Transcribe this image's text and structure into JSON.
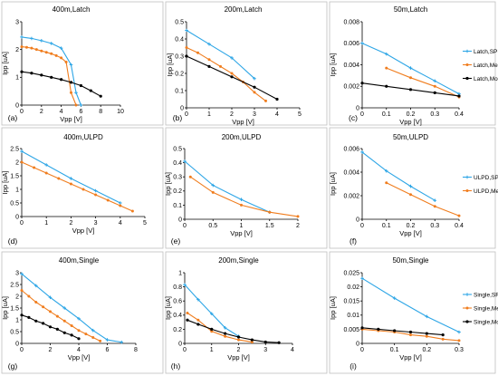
{
  "colors": {
    "spice": "#2ea6e6",
    "meas": "#f07d1e",
    "model": "#000000"
  },
  "panels": [
    {
      "panel_label": "(a)",
      "title": "400m,Latch",
      "xlabel": "Vpp [V]",
      "ylabel": "Ipp [uA]",
      "xlim": [
        0,
        10
      ],
      "ylim": [
        0,
        3
      ],
      "xticks": [
        "0",
        "2",
        "4",
        "6",
        "8",
        "10"
      ],
      "yticks": [
        "0",
        "1",
        "2",
        "3"
      ],
      "series": [
        {
          "kind": "spice",
          "name": "Latch,SPICE",
          "x": [
            0,
            1,
            2,
            3,
            4,
            5,
            5.5,
            6
          ],
          "y": [
            2.45,
            2.4,
            2.32,
            2.22,
            2.05,
            1.45,
            0.45,
            0
          ]
        },
        {
          "kind": "meas",
          "name": "Latch,Meas",
          "x": [
            0,
            0.5,
            1,
            1.5,
            2,
            2.5,
            3,
            3.5,
            4,
            4.5,
            5,
            5.5
          ],
          "y": [
            2.1,
            2.08,
            2.05,
            2.0,
            1.95,
            1.9,
            1.85,
            1.78,
            1.7,
            1.55,
            0.45,
            0
          ]
        },
        {
          "kind": "model",
          "name": "Latch,Model",
          "x": [
            0,
            1,
            2,
            3,
            4,
            5,
            6,
            7,
            8
          ],
          "y": [
            1.2,
            1.15,
            1.08,
            1.0,
            0.92,
            0.82,
            0.7,
            0.52,
            0.32
          ]
        }
      ]
    },
    {
      "panel_label": "(b)",
      "title": "200m,Latch",
      "xlabel": "Vpp [V]",
      "ylabel": "Ipp [uA]",
      "xlim": [
        0,
        5
      ],
      "ylim": [
        0,
        0.5
      ],
      "xticks": [
        "0",
        "1",
        "2",
        "3",
        "4",
        "5"
      ],
      "yticks": [
        "0",
        "0.1",
        "0.2",
        "0.3",
        "0.4",
        "0.5"
      ],
      "series": [
        {
          "kind": "spice",
          "name": "Latch,SPICE",
          "x": [
            0,
            1,
            2,
            3
          ],
          "y": [
            0.45,
            0.37,
            0.29,
            0.17
          ]
        },
        {
          "kind": "meas",
          "name": "Latch,Meas",
          "x": [
            0,
            0.5,
            1,
            1.5,
            2,
            2.5,
            3,
            3.5
          ],
          "y": [
            0.35,
            0.32,
            0.28,
            0.24,
            0.2,
            0.15,
            0.09,
            0.04
          ]
        },
        {
          "kind": "model",
          "name": "Latch,Model",
          "x": [
            0,
            1,
            2,
            3,
            4
          ],
          "y": [
            0.3,
            0.24,
            0.18,
            0.12,
            0.05
          ]
        }
      ]
    },
    {
      "panel_label": "(c)",
      "title": "50m,Latch",
      "xlabel": "Vpp [V]",
      "ylabel": "Ipp [uA]",
      "xlim": [
        0,
        0.4
      ],
      "ylim": [
        0,
        0.008
      ],
      "xticks": [
        "0",
        "0.1",
        "0.2",
        "0.3",
        "0.4"
      ],
      "yticks": [
        "0",
        "0.002",
        "0.004",
        "0.006",
        "0.008"
      ],
      "legend": [
        "Latch,SPICE",
        "Latch,Meas",
        "Latch,Model"
      ],
      "series": [
        {
          "kind": "spice",
          "name": "Latch,SPICE",
          "x": [
            0,
            0.1,
            0.2,
            0.3,
            0.4
          ],
          "y": [
            0.006,
            0.005,
            0.0037,
            0.0025,
            0.0013
          ]
        },
        {
          "kind": "meas",
          "name": "Latch,Meas",
          "x": [
            0.1,
            0.2,
            0.3,
            0.4
          ],
          "y": [
            0.0037,
            0.0028,
            0.002,
            0.001
          ]
        },
        {
          "kind": "model",
          "name": "Latch,Model",
          "x": [
            0,
            0.1,
            0.2,
            0.3,
            0.4
          ],
          "y": [
            0.0023,
            0.002,
            0.0017,
            0.0014,
            0.0011
          ]
        }
      ]
    },
    {
      "panel_label": "(d)",
      "title": "400m,ULPD",
      "xlabel": "Vpp [V]",
      "ylabel": "Ipp [uA]",
      "xlim": [
        0,
        5
      ],
      "ylim": [
        0,
        2.5
      ],
      "xticks": [
        "0",
        "1",
        "2",
        "3",
        "4",
        "5"
      ],
      "yticks": [
        "0",
        "0.5",
        "1",
        "1.5",
        "2",
        "2.5"
      ],
      "series": [
        {
          "kind": "spice",
          "name": "ULPD,SPICE",
          "x": [
            0,
            1,
            2,
            3,
            4
          ],
          "y": [
            2.4,
            1.9,
            1.4,
            0.95,
            0.5
          ]
        },
        {
          "kind": "meas",
          "name": "ULPD,Meas",
          "x": [
            0,
            0.5,
            1,
            1.5,
            2,
            2.5,
            3,
            3.5,
            4,
            4.5
          ],
          "y": [
            2.0,
            1.8,
            1.6,
            1.4,
            1.2,
            1.0,
            0.8,
            0.6,
            0.4,
            0.2
          ]
        }
      ]
    },
    {
      "panel_label": "(e)",
      "title": "200m,ULPD",
      "xlabel": "Vpp [V]",
      "ylabel": "Ipp [uA]",
      "xlim": [
        0,
        2
      ],
      "ylim": [
        0,
        0.5
      ],
      "xticks": [
        "0",
        "0.5",
        "1",
        "1.5",
        "2"
      ],
      "yticks": [
        "0",
        "0.1",
        "0.2",
        "0.3",
        "0.4",
        "0.5"
      ],
      "series": [
        {
          "kind": "spice",
          "name": "ULPD,SPICE",
          "x": [
            0,
            0.5,
            1,
            1.5
          ],
          "y": [
            0.41,
            0.24,
            0.14,
            0.05
          ]
        },
        {
          "kind": "meas",
          "name": "ULPD,Meas",
          "x": [
            0.1,
            0.5,
            1,
            1.5,
            2
          ],
          "y": [
            0.3,
            0.19,
            0.1,
            0.05,
            0.02
          ]
        }
      ]
    },
    {
      "panel_label": "(f)",
      "title": "50m,ULPD",
      "xlabel": "Vpp [V]",
      "ylabel": "Ipp [uA]",
      "xlim": [
        0,
        0.4
      ],
      "ylim": [
        0,
        0.006
      ],
      "xticks": [
        "0",
        "0.1",
        "0.2",
        "0.3",
        "0.4"
      ],
      "yticks": [
        "0",
        "0.002",
        "0.004",
        "0.006"
      ],
      "legend": [
        "ULPD,SPICE",
        "ULPD,Meas"
      ],
      "series": [
        {
          "kind": "spice",
          "name": "ULPD,SPICE",
          "x": [
            0,
            0.1,
            0.2,
            0.3
          ],
          "y": [
            0.0057,
            0.0041,
            0.0028,
            0.0016
          ]
        },
        {
          "kind": "meas",
          "name": "ULPD,Meas",
          "x": [
            0.1,
            0.2,
            0.3,
            0.4
          ],
          "y": [
            0.0031,
            0.0021,
            0.0011,
            0.0003
          ]
        }
      ]
    },
    {
      "panel_label": "(g)",
      "title": "400m,Single",
      "xlabel": "Vpp [V]",
      "ylabel": "Ipp [uA]",
      "xlim": [
        0,
        8
      ],
      "ylim": [
        0,
        3
      ],
      "xticks": [
        "0",
        "2",
        "4",
        "6",
        "8"
      ],
      "yticks": [
        "0",
        "0.5",
        "1",
        "1.5",
        "2",
        "2.5",
        "3"
      ],
      "series": [
        {
          "kind": "spice",
          "name": "Single,SPICE",
          "x": [
            0,
            1,
            2,
            3,
            4,
            5,
            6,
            7
          ],
          "y": [
            2.95,
            2.45,
            1.95,
            1.5,
            1.05,
            0.55,
            0.15,
            0.05
          ]
        },
        {
          "kind": "meas",
          "name": "Single,Meas",
          "x": [
            0,
            0.5,
            1,
            1.5,
            2,
            2.5,
            3,
            3.5,
            4,
            4.5,
            5,
            5.5
          ],
          "y": [
            2.25,
            2.0,
            1.75,
            1.55,
            1.35,
            1.15,
            0.95,
            0.75,
            0.55,
            0.4,
            0.25,
            0.1
          ]
        },
        {
          "kind": "model",
          "name": "Single,Model",
          "x": [
            0,
            0.5,
            1,
            1.5,
            2,
            2.5,
            3,
            3.5,
            4
          ],
          "y": [
            1.2,
            1.1,
            0.95,
            0.85,
            0.7,
            0.6,
            0.45,
            0.35,
            0.2
          ]
        }
      ]
    },
    {
      "panel_label": "(h)",
      "title": "200m,Single",
      "xlabel": "Vpp [V]",
      "ylabel": "Ipp [uA]",
      "xlim": [
        0,
        4
      ],
      "ylim": [
        0,
        1
      ],
      "xticks": [
        "0",
        "1",
        "2",
        "3",
        "4"
      ],
      "yticks": [
        "0",
        "0.2",
        "0.4",
        "0.6",
        "0.8",
        "1"
      ],
      "series": [
        {
          "kind": "spice",
          "name": "Single,SPICE",
          "x": [
            0,
            0.5,
            1,
            1.5,
            2
          ],
          "y": [
            0.83,
            0.62,
            0.42,
            0.22,
            0.1
          ]
        },
        {
          "kind": "meas",
          "name": "Single,Meas",
          "x": [
            0.1,
            0.5,
            1,
            1.5,
            2,
            2.5
          ],
          "y": [
            0.43,
            0.33,
            0.17,
            0.1,
            0.05,
            0.02
          ]
        },
        {
          "kind": "model",
          "name": "Single,Model",
          "x": [
            0.1,
            0.5,
            1,
            1.5,
            2,
            2.5,
            3,
            3.5
          ],
          "y": [
            0.33,
            0.27,
            0.2,
            0.14,
            0.09,
            0.05,
            0.02,
            0.01
          ]
        }
      ]
    },
    {
      "panel_label": "(i)",
      "title": "50m,Single",
      "xlabel": "Vpp [V]",
      "ylabel": "Ipp [uA]",
      "xlim": [
        0,
        0.3
      ],
      "ylim": [
        0,
        0.025
      ],
      "xticks": [
        "0",
        "0.1",
        "0.2",
        "0.3"
      ],
      "yticks": [
        "0",
        "0.005",
        "0.01",
        "0.015",
        "0.02",
        "0.025"
      ],
      "legend": [
        "Single,SPICE",
        "Single,Meas",
        "Single,Model"
      ],
      "series": [
        {
          "kind": "spice",
          "name": "Single,SPICE",
          "x": [
            0,
            0.1,
            0.2,
            0.3
          ],
          "y": [
            0.023,
            0.016,
            0.0095,
            0.004
          ]
        },
        {
          "kind": "meas",
          "name": "Single,Meas",
          "x": [
            0,
            0.05,
            0.1,
            0.15,
            0.2,
            0.25,
            0.3
          ],
          "y": [
            0.005,
            0.0045,
            0.004,
            0.003,
            0.0025,
            0.0015,
            0.001
          ]
        },
        {
          "kind": "model",
          "name": "Single,Model",
          "x": [
            0,
            0.05,
            0.1,
            0.15,
            0.2,
            0.25
          ],
          "y": [
            0.0055,
            0.005,
            0.0045,
            0.004,
            0.0035,
            0.003
          ]
        }
      ]
    }
  ],
  "chart_data": [
    {
      "type": "line",
      "title": "400m,Latch",
      "xlabel": "Vpp [V]",
      "ylabel": "Ipp [uA]",
      "xlim": [
        0,
        10
      ],
      "ylim": [
        0,
        3
      ]
    },
    {
      "type": "line",
      "title": "200m,Latch",
      "xlabel": "Vpp [V]",
      "ylabel": "Ipp [uA]",
      "xlim": [
        0,
        5
      ],
      "ylim": [
        0,
        0.5
      ]
    },
    {
      "type": "line",
      "title": "50m,Latch",
      "xlabel": "Vpp [V]",
      "ylabel": "Ipp [uA]",
      "xlim": [
        0,
        0.4
      ],
      "ylim": [
        0,
        0.008
      ]
    },
    {
      "type": "line",
      "title": "400m,ULPD",
      "xlabel": "Vpp [V]",
      "ylabel": "Ipp [uA]",
      "xlim": [
        0,
        5
      ],
      "ylim": [
        0,
        2.5
      ]
    },
    {
      "type": "line",
      "title": "200m,ULPD",
      "xlabel": "Vpp [V]",
      "ylabel": "Ipp [uA]",
      "xlim": [
        0,
        2
      ],
      "ylim": [
        0,
        0.5
      ]
    },
    {
      "type": "line",
      "title": "50m,ULPD",
      "xlabel": "Vpp [V]",
      "ylabel": "Ipp [uA]",
      "xlim": [
        0,
        0.4
      ],
      "ylim": [
        0,
        0.006
      ]
    },
    {
      "type": "line",
      "title": "400m,Single",
      "xlabel": "Vpp [V]",
      "ylabel": "Ipp [uA]",
      "xlim": [
        0,
        8
      ],
      "ylim": [
        0,
        3
      ]
    },
    {
      "type": "line",
      "title": "200m,Single",
      "xlabel": "Vpp [V]",
      "ylabel": "Ipp [uA]",
      "xlim": [
        0,
        4
      ],
      "ylim": [
        0,
        1
      ]
    },
    {
      "type": "line",
      "title": "50m,Single",
      "xlabel": "Vpp [V]",
      "ylabel": "Ipp [uA]",
      "xlim": [
        0,
        0.3
      ],
      "ylim": [
        0,
        0.025
      ]
    }
  ]
}
